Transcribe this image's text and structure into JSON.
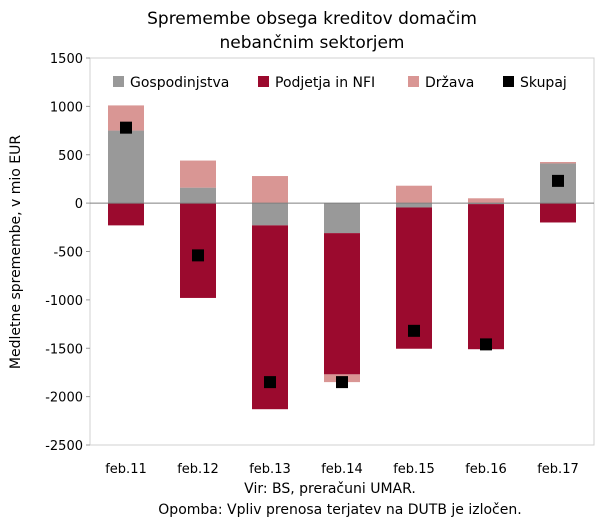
{
  "chart_data": {
    "type": "bar",
    "stacked": true,
    "title": "Spremembe obsega kreditov domačim nebančnim sektorjem",
    "title_lines": [
      "Spremembe obsega kreditov domačim",
      "nebančnim sektorjem"
    ],
    "ylabel": "Medletne spremembe, v mio EUR",
    "xlabel": "",
    "ylim": [
      -2500,
      1500
    ],
    "yticks": [
      1500,
      1000,
      500,
      0,
      -500,
      -1000,
      -1500,
      -2000,
      -2500
    ],
    "ytick_labels": [
      "1500",
      "1000",
      "500",
      "0",
      "-500",
      "-1000",
      "-1500",
      "-2000",
      "-2500"
    ],
    "categories": [
      "feb.11",
      "feb.12",
      "feb.13",
      "feb.14",
      "feb.15",
      "feb.16",
      "feb.17"
    ],
    "grid": false,
    "legend_position": "top",
    "series": [
      {
        "name": "Gospodinjstva",
        "kind": "bar",
        "color": "#999999",
        "values": [
          750,
          160,
          -230,
          -310,
          -45,
          -10,
          410
        ]
      },
      {
        "name": "Podjetja in NFI",
        "kind": "bar",
        "color": "#9b0a2e",
        "values": [
          -230,
          -980,
          -1900,
          -1460,
          -1460,
          -1500,
          -200
        ]
      },
      {
        "name": "Država",
        "kind": "bar",
        "color": "#d99694",
        "values": [
          260,
          280,
          280,
          -80,
          180,
          50,
          15
        ]
      },
      {
        "name": "Skupaj",
        "kind": "marker",
        "color": "#000000",
        "values": [
          780,
          -540,
          -1850,
          -1850,
          -1320,
          -1460,
          230
        ]
      }
    ]
  },
  "notes": {
    "source": "Vir: BS, preračuni UMAR.",
    "remark": "Opomba: Vpliv prenosa terjatev na DUTB je izločen."
  }
}
